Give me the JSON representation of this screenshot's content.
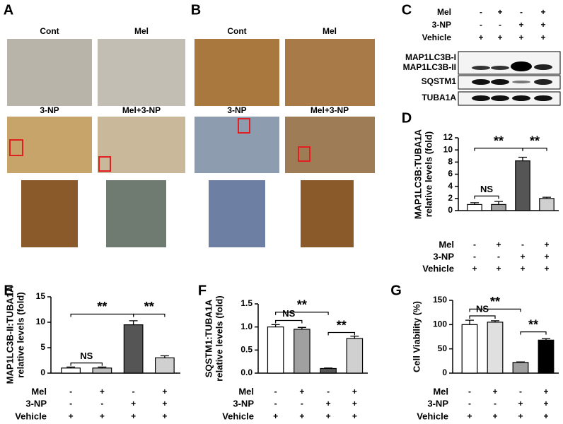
{
  "panels": [
    {
      "letter": "A",
      "col_labels": [
        "Cont",
        "Mel"
      ],
      "row2_labels": [
        "3-NP",
        "Mel+3-NP"
      ]
    },
    {
      "letter": "B",
      "col_labels": [
        "Cont",
        "Mel"
      ],
      "row2_labels": [
        "3-NP",
        "Mel+3-NP"
      ]
    }
  ],
  "blot": {
    "letter": "C",
    "conditions": [
      {
        "label": "Mel",
        "signs": [
          "-",
          "+",
          "-",
          "+"
        ]
      },
      {
        "label": "3-NP",
        "signs": [
          "-",
          "-",
          "+",
          "+"
        ]
      },
      {
        "label": "Vehicle",
        "signs": [
          "+",
          "+",
          "+",
          "+"
        ]
      }
    ],
    "bands": [
      "MAP1LC3B-I",
      "MAP1LC3B-II",
      "SQSTM1",
      "TUBA1A"
    ]
  },
  "chart_data": [
    {
      "type": "bar",
      "panel_label": "D",
      "ylabel": [
        "MAP1LC3B:TUBA1A",
        "relative levels (fold)"
      ],
      "values": [
        1,
        1,
        8.2,
        2
      ],
      "error": [
        0.3,
        0.5,
        0.6,
        0.2
      ],
      "colors": [
        "#ffffff",
        "#a0a0a0",
        "#555555",
        "#d0d0d0"
      ],
      "ylim": [
        0,
        12
      ],
      "yticks": [
        0,
        2,
        4,
        6,
        8,
        10,
        12
      ],
      "annotations": [
        "**",
        "**",
        "NS"
      ],
      "conditions": [
        {
          "label": "Mel",
          "signs": [
            "-",
            "+",
            "-",
            "+"
          ]
        },
        {
          "label": "3-NP",
          "signs": [
            "-",
            "-",
            "+",
            "+"
          ]
        },
        {
          "label": "Vehicle",
          "signs": [
            "+",
            "+",
            "+",
            "+"
          ]
        }
      ]
    },
    {
      "type": "bar",
      "panel_label": "E",
      "ylabel": [
        "MAP1LC3B-II:TUBA1A",
        "relative levels (fold)"
      ],
      "values": [
        1,
        1,
        9.5,
        3
      ],
      "error": [
        0.2,
        0.2,
        0.8,
        0.4
      ],
      "colors": [
        "#ffffff",
        "#c0c0c0",
        "#555555",
        "#d0d0d0"
      ],
      "ylim": [
        0,
        15
      ],
      "yticks": [
        0,
        5,
        10,
        15
      ],
      "annotations": [
        "**",
        "**",
        "NS"
      ],
      "conditions": [
        {
          "label": "Mel",
          "signs": [
            "-",
            "+",
            "-",
            "+"
          ]
        },
        {
          "label": "3-NP",
          "signs": [
            "-",
            "-",
            "+",
            "+"
          ]
        },
        {
          "label": "Vehicle",
          "signs": [
            "+",
            "+",
            "+",
            "+"
          ]
        }
      ]
    },
    {
      "type": "bar",
      "panel_label": "F",
      "ylabel": [
        "SQSTM1:TUBA1A",
        "relative levels (fold)"
      ],
      "values": [
        1.0,
        0.95,
        0.1,
        0.75
      ],
      "error": [
        0.05,
        0.04,
        0.01,
        0.05
      ],
      "colors": [
        "#ffffff",
        "#a0a0a0",
        "#555555",
        "#d0d0d0"
      ],
      "ylim": [
        0,
        1.5
      ],
      "yticks": [
        {
          "value": 0,
          "label": "0.0"
        },
        0.5,
        {
          "value": 1,
          "label": "1.0"
        },
        1.5
      ],
      "annotations": [
        "**",
        "NS",
        "**"
      ],
      "conditions": [
        {
          "label": "Mel",
          "signs": [
            "-",
            "+",
            "-",
            "+"
          ]
        },
        {
          "label": "3-NP",
          "signs": [
            "-",
            "-",
            "+",
            "+"
          ]
        },
        {
          "label": "Vehicle",
          "signs": [
            "+",
            "+",
            "+",
            "+"
          ]
        }
      ]
    },
    {
      "type": "bar",
      "panel_label": "G",
      "ylabel": [
        "Cell Viability (%)"
      ],
      "values": [
        100,
        105,
        22,
        68
      ],
      "error": [
        9,
        3,
        1,
        3
      ],
      "colors": [
        "#ffffff",
        "#e0e0e0",
        "#a0a0a0",
        "#000000"
      ],
      "ylim": [
        0,
        150
      ],
      "yticks": [
        0,
        50,
        100,
        150
      ],
      "annotations": [
        "**",
        "NS",
        "**"
      ],
      "conditions": [
        {
          "label": "Mel",
          "signs": [
            "-",
            "+",
            "-",
            "+"
          ]
        },
        {
          "label": "3-NP",
          "signs": [
            "-",
            "-",
            "+",
            "+"
          ]
        },
        {
          "label": "Vehicle",
          "signs": [
            "+",
            "+",
            "+",
            "+"
          ]
        }
      ]
    }
  ]
}
